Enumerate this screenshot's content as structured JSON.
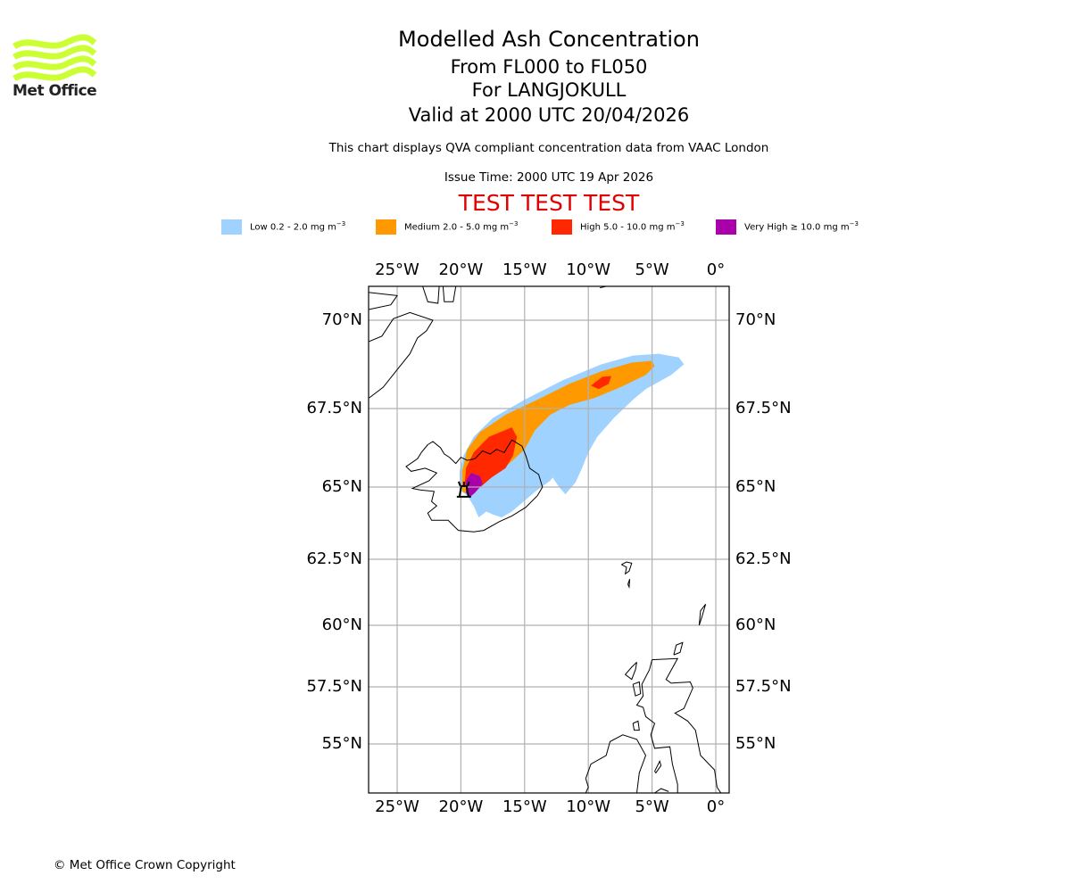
{
  "header": {
    "title": "Modelled Ash Concentration",
    "level_range": "From FL000 to FL050",
    "volcano": "For LANGJOKULL",
    "valid_time": "Valid at 2000 UTC 20/04/2026",
    "subtitle": "This chart displays QVA compliant concentration data from VAAC London",
    "issue_time": "Issue Time: 2000 UTC 19 Apr 2026",
    "test_banner": "TEST TEST TEST",
    "test_color": "#e00000"
  },
  "logo": {
    "text": "Met Office",
    "color": "#ccff33"
  },
  "legend": [
    {
      "name": "Low",
      "label": "Low 0.2 - 2.0 mg m",
      "color": "#a0d2ff"
    },
    {
      "name": "Medium",
      "label": "Medium 2.0 - 5.0 mg m",
      "color": "#ff9900"
    },
    {
      "name": "High",
      "label": "High 5.0 - 10.0 mg m",
      "color": "#ff2800"
    },
    {
      "name": "Very High",
      "label": "Very High  ≥  10.0 mg m",
      "color": "#aa00aa"
    }
  ],
  "legend_unit_exp": "−3",
  "footer": {
    "copyright": "© Met Office Crown Copyright"
  },
  "chart_data": {
    "type": "map",
    "title": "Modelled Ash Concentration",
    "lon_range": [
      -27.2,
      1.1
    ],
    "lat_range": [
      53.3,
      71.1
    ],
    "grid": true,
    "lon_ticks": [
      {
        "value": -25,
        "label": "25°W"
      },
      {
        "value": -20,
        "label": "20°W"
      },
      {
        "value": -15,
        "label": "15°W"
      },
      {
        "value": -10,
        "label": "10°W"
      },
      {
        "value": -5,
        "label": "5°W"
      },
      {
        "value": 0,
        "label": "0°"
      }
    ],
    "lat_ticks": [
      {
        "value": 70,
        "label": "70°N"
      },
      {
        "value": 67.5,
        "label": "67.5°N"
      },
      {
        "value": 65,
        "label": "65°N"
      },
      {
        "value": 62.5,
        "label": "62.5°N"
      },
      {
        "value": 60,
        "label": "60°N"
      },
      {
        "value": 57.5,
        "label": "57.5°N"
      },
      {
        "value": 55,
        "label": "55°N"
      }
    ],
    "ash_polygons": [
      {
        "level": "Low",
        "color": "#a0d2ff",
        "coords": [
          [
            -20.1,
            64.9
          ],
          [
            -20.1,
            65.5
          ],
          [
            -19.8,
            66.0
          ],
          [
            -19.0,
            66.6
          ],
          [
            -17.5,
            67.2
          ],
          [
            -15.0,
            67.75
          ],
          [
            -12.0,
            68.3
          ],
          [
            -9.0,
            68.75
          ],
          [
            -6.5,
            69.0
          ],
          [
            -4.5,
            69.05
          ],
          [
            -2.9,
            68.95
          ],
          [
            -2.5,
            68.75
          ],
          [
            -3.5,
            68.45
          ],
          [
            -5.5,
            68.05
          ],
          [
            -6.5,
            67.75
          ],
          [
            -8.0,
            67.2
          ],
          [
            -9.3,
            66.6
          ],
          [
            -10.0,
            66.1
          ],
          [
            -10.5,
            65.6
          ],
          [
            -11.0,
            65.15
          ],
          [
            -11.8,
            64.75
          ],
          [
            -12.3,
            65.0
          ],
          [
            -12.8,
            65.3
          ],
          [
            -13.0,
            65.2
          ],
          [
            -14.0,
            64.9
          ],
          [
            -15.2,
            64.45
          ],
          [
            -16.0,
            64.15
          ],
          [
            -16.8,
            63.95
          ],
          [
            -17.5,
            64.05
          ],
          [
            -18.0,
            64.15
          ],
          [
            -18.6,
            63.95
          ],
          [
            -19.0,
            64.35
          ],
          [
            -19.5,
            64.7
          ]
        ]
      },
      {
        "level": "Medium",
        "color": "#ff9900",
        "coords": [
          [
            -19.9,
            64.85
          ],
          [
            -19.9,
            65.5
          ],
          [
            -19.5,
            66.2
          ],
          [
            -18.5,
            66.75
          ],
          [
            -16.5,
            67.3
          ],
          [
            -14.0,
            67.75
          ],
          [
            -11.5,
            68.2
          ],
          [
            -9.0,
            68.55
          ],
          [
            -6.6,
            68.8
          ],
          [
            -5.0,
            68.85
          ],
          [
            -4.8,
            68.7
          ],
          [
            -5.5,
            68.45
          ],
          [
            -7.5,
            68.1
          ],
          [
            -9.5,
            67.8
          ],
          [
            -11.5,
            67.6
          ],
          [
            -13.0,
            67.3
          ],
          [
            -14.2,
            66.8
          ],
          [
            -15.0,
            66.2
          ],
          [
            -16.2,
            65.75
          ],
          [
            -17.5,
            65.45
          ],
          [
            -18.5,
            65.05
          ],
          [
            -19.2,
            64.7
          ]
        ]
      },
      {
        "level": "High",
        "color": "#ff2800",
        "coords": [
          [
            -19.7,
            65.1
          ],
          [
            -19.6,
            65.6
          ],
          [
            -19.0,
            66.1
          ],
          [
            -17.8,
            66.6
          ],
          [
            -16.0,
            66.9
          ],
          [
            -15.6,
            66.6
          ],
          [
            -15.9,
            66.0
          ],
          [
            -16.5,
            65.6
          ],
          [
            -17.6,
            65.3
          ],
          [
            -18.6,
            64.95
          ],
          [
            -19.3,
            64.85
          ]
        ]
      },
      {
        "level": "High",
        "color": "#ff2800",
        "coords": [
          [
            -9.8,
            68.15
          ],
          [
            -8.9,
            68.4
          ],
          [
            -8.2,
            68.42
          ],
          [
            -8.4,
            68.2
          ],
          [
            -9.2,
            68.05
          ]
        ]
      },
      {
        "level": "Very High",
        "color": "#aa00aa",
        "coords": [
          [
            -19.6,
            64.8
          ],
          [
            -19.6,
            65.2
          ],
          [
            -19.2,
            65.45
          ],
          [
            -18.5,
            65.35
          ],
          [
            -18.3,
            65.1
          ],
          [
            -18.9,
            64.8
          ],
          [
            -19.3,
            64.65
          ]
        ]
      }
    ],
    "coastlines": [
      {
        "name": "Iceland",
        "coords": [
          [
            -22.6,
            66.35
          ],
          [
            -22.2,
            66.45
          ],
          [
            -21.6,
            66.25
          ],
          [
            -21.3,
            66.05
          ],
          [
            -20.9,
            65.95
          ],
          [
            -20.4,
            65.75
          ],
          [
            -20.0,
            65.95
          ],
          [
            -19.5,
            65.85
          ],
          [
            -18.9,
            65.9
          ],
          [
            -18.3,
            66.15
          ],
          [
            -17.7,
            66.05
          ],
          [
            -17.2,
            66.2
          ],
          [
            -16.6,
            66.1
          ],
          [
            -16.0,
            66.5
          ],
          [
            -15.2,
            66.3
          ],
          [
            -14.9,
            66.0
          ],
          [
            -14.6,
            65.6
          ],
          [
            -13.9,
            65.4
          ],
          [
            -13.6,
            65.0
          ],
          [
            -14.0,
            64.7
          ],
          [
            -14.9,
            64.3
          ],
          [
            -16.0,
            64.0
          ],
          [
            -17.0,
            63.8
          ],
          [
            -18.2,
            63.5
          ],
          [
            -19.0,
            63.45
          ],
          [
            -20.2,
            63.5
          ],
          [
            -21.0,
            63.85
          ],
          [
            -22.3,
            63.85
          ],
          [
            -22.6,
            64.1
          ],
          [
            -21.9,
            64.35
          ],
          [
            -22.3,
            64.5
          ],
          [
            -22.1,
            64.85
          ],
          [
            -23.2,
            64.9
          ],
          [
            -23.8,
            64.95
          ],
          [
            -22.5,
            65.2
          ],
          [
            -21.9,
            65.45
          ],
          [
            -22.8,
            65.6
          ],
          [
            -23.9,
            65.5
          ],
          [
            -24.3,
            65.65
          ],
          [
            -23.4,
            65.9
          ],
          [
            -23.1,
            66.1
          ],
          [
            -22.6,
            66.35
          ]
        ]
      },
      {
        "name": "Greenland",
        "coords": [
          [
            -27.2,
            69.4
          ],
          [
            -26.2,
            69.55
          ],
          [
            -25.3,
            70.05
          ],
          [
            -24.0,
            70.25
          ],
          [
            -22.2,
            70.0
          ],
          [
            -22.7,
            69.7
          ],
          [
            -23.4,
            69.5
          ],
          [
            -24.0,
            69.05
          ],
          [
            -25.0,
            68.6
          ],
          [
            -26.1,
            68.1
          ],
          [
            -27.2,
            67.8
          ]
        ]
      },
      {
        "name": "Greenland-fjord",
        "coords": [
          [
            -27.2,
            70.35
          ],
          [
            -25.5,
            70.5
          ],
          [
            -25.0,
            70.8
          ],
          [
            -27.2,
            70.9
          ]
        ]
      },
      {
        "name": "Greenland-north",
        "coords": [
          [
            -23.0,
            71.1
          ],
          [
            -22.6,
            70.6
          ],
          [
            -21.8,
            70.55
          ],
          [
            -21.7,
            71.1
          ]
        ]
      },
      {
        "name": "Greenland-north2",
        "coords": [
          [
            -21.4,
            71.1
          ],
          [
            -21.3,
            70.6
          ],
          [
            -20.6,
            70.6
          ],
          [
            -20.4,
            71.1
          ]
        ]
      },
      {
        "name": "Jan Mayen",
        "coords": [
          [
            -9.1,
            71.05
          ],
          [
            -8.6,
            71.1
          ]
        ]
      },
      {
        "name": "Faroe",
        "coords": [
          [
            -7.4,
            62.3
          ],
          [
            -7.0,
            62.4
          ],
          [
            -6.6,
            62.35
          ],
          [
            -6.8,
            62.05
          ],
          [
            -7.1,
            61.95
          ],
          [
            -7.0,
            62.2
          ],
          [
            -7.4,
            62.3
          ]
        ]
      },
      {
        "name": "Faroe-south",
        "coords": [
          [
            -6.9,
            61.55
          ],
          [
            -6.75,
            61.75
          ],
          [
            -6.8,
            61.45
          ],
          [
            -6.9,
            61.55
          ]
        ]
      },
      {
        "name": "Shetland",
        "coords": [
          [
            -1.3,
            60.0
          ],
          [
            -1.2,
            60.55
          ],
          [
            -0.8,
            60.8
          ],
          [
            -1.1,
            60.3
          ],
          [
            -1.3,
            60.0
          ]
        ]
      },
      {
        "name": "Orkney",
        "coords": [
          [
            -3.3,
            58.8
          ],
          [
            -3.1,
            59.2
          ],
          [
            -2.6,
            59.3
          ],
          [
            -2.8,
            58.9
          ],
          [
            -3.3,
            58.8
          ]
        ]
      },
      {
        "name": "Scotland",
        "coords": [
          [
            -5.0,
            58.6
          ],
          [
            -3.0,
            58.65
          ],
          [
            -3.9,
            57.8
          ],
          [
            -3.5,
            57.65
          ],
          [
            -2.0,
            57.7
          ],
          [
            -1.8,
            57.45
          ],
          [
            -2.5,
            56.55
          ],
          [
            -3.2,
            56.35
          ],
          [
            -2.2,
            56.0
          ],
          [
            -1.6,
            55.6
          ],
          [
            -1.2,
            54.6
          ],
          [
            -0.1,
            54.1
          ],
          [
            0.1,
            53.5
          ],
          [
            0.4,
            53.3
          ],
          [
            -3.0,
            53.3
          ],
          [
            -3.0,
            53.6
          ],
          [
            -3.4,
            54.3
          ],
          [
            -3.6,
            54.9
          ],
          [
            -4.8,
            54.85
          ],
          [
            -5.1,
            55.4
          ],
          [
            -4.8,
            55.9
          ],
          [
            -5.5,
            56.2
          ],
          [
            -5.7,
            56.6
          ],
          [
            -6.2,
            56.7
          ],
          [
            -5.7,
            57.1
          ],
          [
            -5.8,
            57.6
          ],
          [
            -5.2,
            58.2
          ],
          [
            -5.0,
            58.6
          ]
        ]
      },
      {
        "name": "Lewis",
        "coords": [
          [
            -6.2,
            58.5
          ],
          [
            -6.6,
            58.3
          ],
          [
            -7.1,
            58.0
          ],
          [
            -6.6,
            57.8
          ],
          [
            -6.3,
            58.2
          ],
          [
            -6.2,
            58.5
          ]
        ]
      },
      {
        "name": "Skye-Mull",
        "coords": [
          [
            -6.5,
            57.6
          ],
          [
            -6.0,
            57.7
          ],
          [
            -5.9,
            57.2
          ],
          [
            -6.3,
            57.1
          ],
          [
            -6.5,
            57.6
          ]
        ]
      },
      {
        "name": "Islay",
        "coords": [
          [
            -6.5,
            55.9
          ],
          [
            -6.1,
            56.0
          ],
          [
            -6.0,
            55.6
          ],
          [
            -6.4,
            55.6
          ],
          [
            -6.5,
            55.9
          ]
        ]
      },
      {
        "name": "Ireland-north",
        "coords": [
          [
            -10.2,
            53.8
          ],
          [
            -9.8,
            54.3
          ],
          [
            -8.6,
            54.6
          ],
          [
            -8.3,
            55.1
          ],
          [
            -7.3,
            55.4
          ],
          [
            -6.2,
            55.2
          ],
          [
            -5.5,
            54.6
          ],
          [
            -6.0,
            54.0
          ],
          [
            -6.2,
            53.3
          ]
        ]
      },
      {
        "name": "Ireland-west",
        "coords": [
          [
            -10.2,
            53.3
          ],
          [
            -10.0,
            53.5
          ],
          [
            -10.2,
            53.8
          ]
        ]
      },
      {
        "name": "IoM",
        "coords": [
          [
            -4.8,
            54.05
          ],
          [
            -4.4,
            54.4
          ],
          [
            -4.3,
            54.25
          ],
          [
            -4.7,
            54.0
          ],
          [
            -4.8,
            54.05
          ]
        ]
      },
      {
        "name": "Wales",
        "coords": [
          [
            -4.8,
            53.3
          ],
          [
            -4.3,
            53.45
          ],
          [
            -3.7,
            53.35
          ]
        ]
      }
    ],
    "volcano_marker": {
      "name": "LANGJOKULL",
      "lon": -19.9,
      "lat": 64.85
    }
  }
}
